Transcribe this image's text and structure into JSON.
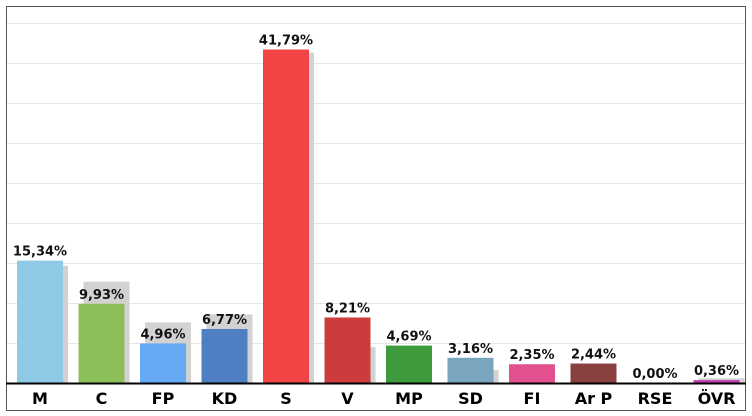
{
  "chart_data": {
    "type": "bar",
    "categories": [
      "M",
      "C",
      "FP",
      "KD",
      "S",
      "V",
      "MP",
      "SD",
      "FI",
      "Ar P",
      "RSE",
      "ÖVR"
    ],
    "values": [
      15.34,
      9.93,
      4.96,
      6.77,
      41.79,
      8.21,
      4.69,
      3.16,
      2.35,
      2.44,
      0.0,
      0.36
    ],
    "value_labels": [
      "15,34%",
      "9,93%",
      "4,96%",
      "6,77%",
      "41,79%",
      "8,21%",
      "4,69%",
      "3,16%",
      "2,35%",
      "2,44%",
      "0,00%",
      "0,36%"
    ],
    "previous_values": [
      14.7,
      12.7,
      7.6,
      8.6,
      41.4,
      4.5,
      0,
      1.6,
      0,
      0,
      0,
      0.6
    ],
    "colors": [
      "#8ecae6",
      "#8cbf5a",
      "#66aaf5",
      "#4e7fc2",
      "#f24444",
      "#cc3c3c",
      "#3d9a3d",
      "#7aa5bf",
      "#e2508f",
      "#8b4040",
      "#d0d0d0",
      "#c03ab0"
    ],
    "shadow_color": "#d2d2d2",
    "ylim": [
      0,
      47
    ],
    "grid": true
  }
}
